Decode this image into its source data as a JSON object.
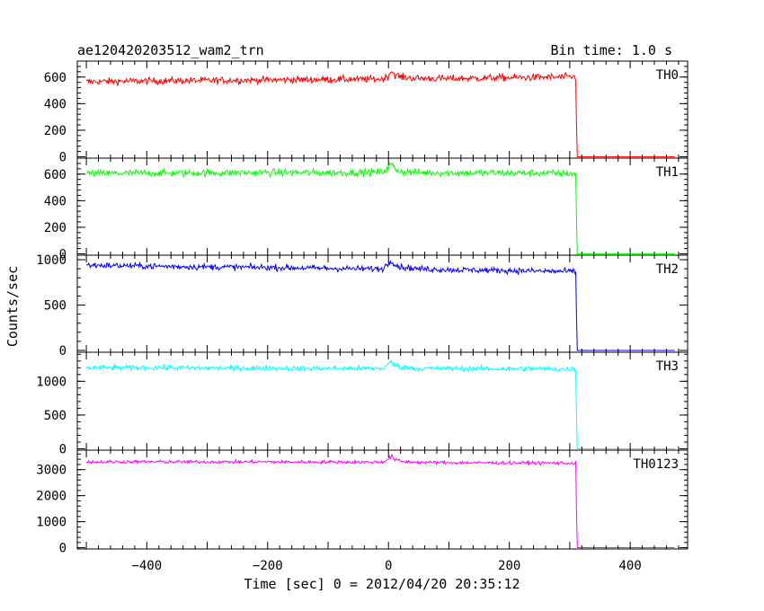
{
  "header": {
    "title": "ae120420203512_wam2_trn",
    "bin_time": "Bin time: 1.0 s"
  },
  "chart_data": {
    "type": "line",
    "title": "ae120420203512_wam2_trn",
    "xlabel": "Time [sec] 0 = 2012/04/20 20:35:12",
    "ylabel": "Counts/sec",
    "xlim": [
      -515,
      495
    ],
    "x_ticks": [
      -400,
      -200,
      0,
      200,
      400
    ],
    "x_tick_labels": [
      "−400",
      "−200",
      "0",
      "200",
      "400"
    ],
    "grid": false,
    "legend": "none",
    "panels": [
      {
        "label": "TH0",
        "color": "#ff0000",
        "ylim": [
          -10,
          720
        ],
        "y_ticks": [
          0,
          200,
          400,
          600
        ],
        "x": [
          -500,
          -450,
          -400,
          -350,
          -300,
          -250,
          -200,
          -150,
          -100,
          -50,
          -10,
          0,
          5,
          10,
          20,
          50,
          100,
          150,
          200,
          250,
          300,
          310,
          312,
          400,
          475
        ],
        "y": [
          565,
          568,
          570,
          572,
          574,
          576,
          578,
          580,
          582,
          583,
          585,
          610,
          650,
          620,
          600,
          590,
          588,
          592,
          595,
          598,
          600,
          600,
          0,
          0,
          0
        ]
      },
      {
        "label": "TH1",
        "color": "#00ff00",
        "ylim": [
          -10,
          720
        ],
        "y_ticks": [
          0,
          200,
          400,
          600
        ],
        "x": [
          -500,
          -450,
          -400,
          -350,
          -300,
          -250,
          -200,
          -150,
          -100,
          -50,
          -10,
          0,
          5,
          10,
          20,
          50,
          100,
          150,
          200,
          250,
          300,
          310,
          312,
          400,
          475
        ],
        "y": [
          605,
          606,
          608,
          607,
          609,
          610,
          612,
          611,
          610,
          612,
          615,
          650,
          680,
          640,
          620,
          612,
          610,
          609,
          608,
          607,
          605,
          605,
          0,
          0,
          0
        ]
      },
      {
        "label": "TH2",
        "color": "#0000ff",
        "ylim": [
          -20,
          1050
        ],
        "y_ticks": [
          0,
          500,
          1000
        ],
        "x": [
          -500,
          -450,
          -400,
          -350,
          -300,
          -250,
          -200,
          -150,
          -100,
          -50,
          -10,
          0,
          5,
          10,
          20,
          50,
          100,
          150,
          200,
          250,
          300,
          310,
          312,
          400,
          475
        ],
        "y": [
          940,
          935,
          930,
          925,
          920,
          918,
          915,
          910,
          905,
          900,
          900,
          960,
          1000,
          950,
          920,
          900,
          890,
          885,
          880,
          875,
          870,
          870,
          0,
          0,
          0
        ]
      },
      {
        "label": "TH3",
        "color": "#00ffff",
        "ylim": [
          -20,
          1430
        ],
        "y_ticks": [
          0,
          500,
          1000
        ],
        "x": [
          -500,
          -450,
          -400,
          -350,
          -300,
          -250,
          -200,
          -150,
          -100,
          -50,
          -10,
          0,
          5,
          10,
          20,
          50,
          100,
          150,
          200,
          250,
          300,
          310,
          312,
          400,
          475
        ],
        "y": [
          1200,
          1200,
          1200,
          1200,
          1195,
          1195,
          1195,
          1190,
          1190,
          1190,
          1190,
          1250,
          1290,
          1240,
          1210,
          1190,
          1190,
          1185,
          1185,
          1185,
          1180,
          1180,
          0,
          0,
          0
        ]
      },
      {
        "label": "TH0123",
        "color": "#ff00ff",
        "ylim": [
          -50,
          3750
        ],
        "y_ticks": [
          0,
          1000,
          2000,
          3000
        ],
        "x": [
          -500,
          -450,
          -400,
          -350,
          -300,
          -250,
          -200,
          -150,
          -100,
          -50,
          -10,
          0,
          5,
          10,
          20,
          50,
          100,
          150,
          200,
          250,
          300,
          310,
          312,
          400,
          475
        ],
        "y": [
          3300,
          3300,
          3305,
          3300,
          3300,
          3300,
          3300,
          3295,
          3295,
          3290,
          3290,
          3420,
          3520,
          3400,
          3320,
          3280,
          3270,
          3265,
          3260,
          3260,
          3250,
          3250,
          0,
          0,
          0
        ]
      }
    ]
  }
}
